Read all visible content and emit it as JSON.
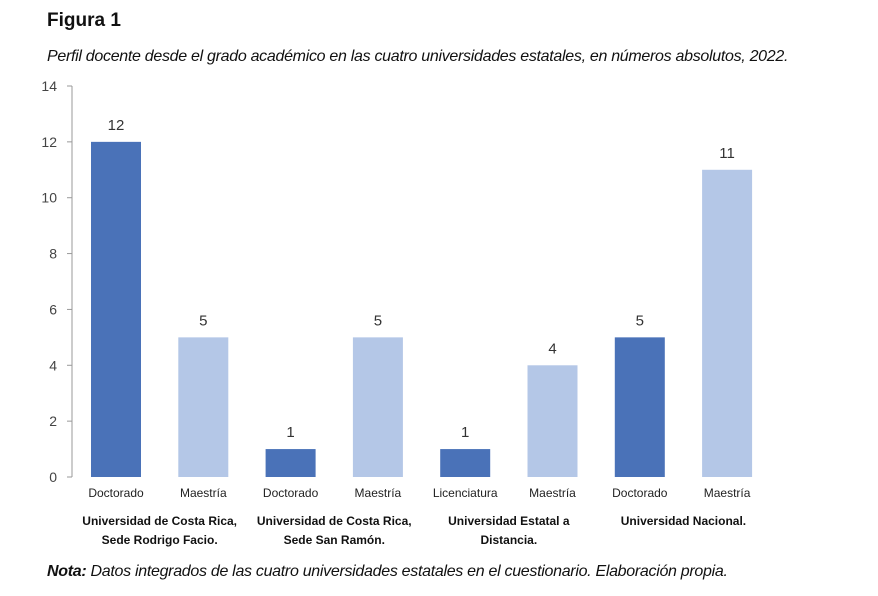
{
  "figure_label": "Figura 1",
  "note_label": "Nota:",
  "note_text": " Datos integrados de las cuatro universidades estatales en el cuestionario. Elaboración propia.",
  "chart_data": {
    "type": "bar",
    "title": "Perfil docente desde el grado académico en las cuatro universidades estatales, en números absolutos, 2022.",
    "xlabel": "",
    "ylabel": "",
    "ylim": [
      0,
      14
    ],
    "yticks": [
      0,
      2,
      4,
      6,
      8,
      10,
      12,
      14
    ],
    "grid": false,
    "categories": [
      "Doctorado",
      "Maestría",
      "Doctorado",
      "Maestría",
      "Licenciatura",
      "Maestría",
      "Doctorado",
      "Maestría"
    ],
    "values": [
      12,
      5,
      1,
      5,
      1,
      4,
      5,
      11
    ],
    "groups": [
      {
        "lines": [
          "Universidad de Costa Rica,",
          "Sede Rodrigo Facio."
        ]
      },
      {
        "lines": [
          "Universidad de Costa Rica,",
          "Sede San Ramón."
        ]
      },
      {
        "lines": [
          "Universidad Estatal a",
          "Distancia."
        ]
      },
      {
        "lines": [
          "Universidad Nacional."
        ]
      }
    ],
    "bar_colors": [
      "#4a72b8",
      "#b4c7e7",
      "#4a72b8",
      "#b4c7e7",
      "#4a72b8",
      "#b4c7e7",
      "#4a72b8",
      "#b4c7e7"
    ]
  }
}
